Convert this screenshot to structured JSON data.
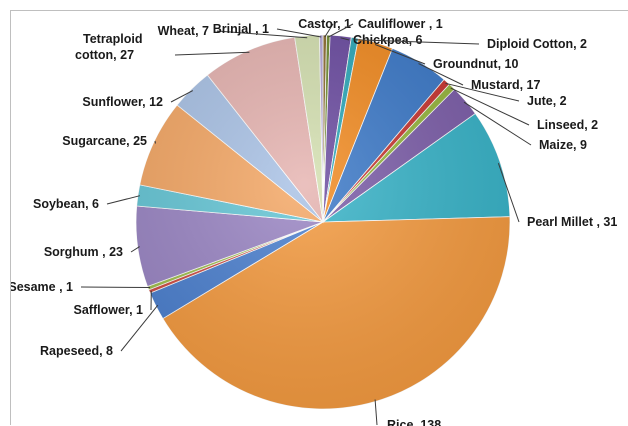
{
  "chart_data": {
    "type": "pie",
    "title": "",
    "slices": [
      {
        "label": "Castor, 1",
        "name": "Castor",
        "value": 1,
        "color": "#8c6a2e"
      },
      {
        "label": "Cauliflower , 1",
        "name": "Cauliflower",
        "value": 1,
        "color": "#6e8b2f"
      },
      {
        "label": "Chickpea, 6",
        "name": "Chickpea",
        "value": 6,
        "color": "#6a4aa0"
      },
      {
        "label": "Diploid Cotton, 2",
        "name": "Diploid Cotton",
        "value": 2,
        "color": "#2aa7b8"
      },
      {
        "label": "Groundnut, 10",
        "name": "Groundnut",
        "value": 10,
        "color": "#f28a1f"
      },
      {
        "label": "Mustard, 17",
        "name": "Mustard",
        "value": 17,
        "color": "#3a78c8"
      },
      {
        "label": "Jute, 2",
        "name": "Jute",
        "value": 2,
        "color": "#c8342f"
      },
      {
        "label": "Linseed, 2",
        "name": "Linseed",
        "value": 2,
        "color": "#95b53b"
      },
      {
        "label": "Maize, 9",
        "name": "Maize",
        "value": 9,
        "color": "#7b5ca8"
      },
      {
        "label": "Pearl Millet , 31",
        "name": "Pearl Millet",
        "value": 31,
        "color": "#36b3c8"
      },
      {
        "label": "Rice, 138",
        "name": "Rice",
        "value": 138,
        "color": "#f59a3e"
      },
      {
        "label": "Rapeseed, 8",
        "name": "Rapeseed",
        "value": 8,
        "color": "#4a7fcf"
      },
      {
        "label": "Safflower, 1",
        "name": "Safflower",
        "value": 1,
        "color": "#d04a40"
      },
      {
        "label": "Sesame , 1",
        "name": "Sesame",
        "value": 1,
        "color": "#9fbf4a"
      },
      {
        "label": "Sorghum , 23",
        "name": "Sorghum",
        "value": 23,
        "color": "#9a85c4"
      },
      {
        "label": "Soybean, 6",
        "name": "Soybean",
        "value": 6,
        "color": "#64c6d6"
      },
      {
        "label": "Sugarcane, 25",
        "name": "Sugarcane",
        "value": 25,
        "color": "#f5a764"
      },
      {
        "label": "Sunflower, 12",
        "name": "Sunflower",
        "value": 12,
        "color": "#a9c2e6"
      },
      {
        "label": "Tetraploid cotton, 27",
        "name": "Tetraploid cotton",
        "value": 27,
        "color": "#e6b3b0"
      },
      {
        "label": "Wheat, 7",
        "name": "Wheat",
        "value": 7,
        "color": "#d4e0b0"
      },
      {
        "label": "Brinjal , 1",
        "name": "Brinjal",
        "value": 1,
        "color": "#b3a6d6"
      }
    ],
    "start_angle_deg": 0,
    "direction": "clockwise",
    "legend": "none",
    "label_style": "outside with leader lines"
  }
}
